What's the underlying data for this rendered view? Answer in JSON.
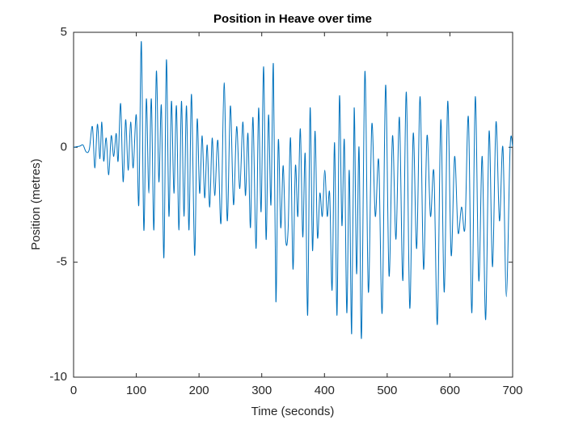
{
  "chart_data": {
    "type": "line",
    "title": "Position in Heave over time",
    "x_label": "Time (seconds)",
    "y_label": "Position (metres)",
    "xlim": [
      0,
      700
    ],
    "ylim": [
      -10,
      5
    ],
    "xticks": [
      0,
      100,
      200,
      300,
      400,
      500,
      600,
      700
    ],
    "yticks": [
      -10,
      -5,
      0,
      5
    ],
    "grid": false,
    "series": [
      {
        "name": "Position",
        "color": "#0072BD",
        "x": [
          0,
          10,
          15,
          20,
          25,
          30,
          34,
          38,
          42,
          45,
          48,
          52,
          56,
          60,
          64,
          68,
          71,
          75,
          79,
          83,
          87,
          91,
          95,
          100,
          104,
          108,
          112,
          116,
          120,
          124,
          128,
          132,
          136,
          140,
          144,
          148,
          152,
          156,
          160,
          164,
          168,
          172,
          176,
          180,
          184,
          188,
          193,
          197,
          201,
          205,
          209,
          213,
          217,
          221,
          225,
          230,
          235,
          240,
          245,
          250,
          255,
          260,
          265,
          270,
          274,
          278,
          282,
          286,
          291,
          295,
          299,
          303,
          306.9,
          310.8,
          314.7,
          318.6,
          322.5,
          326.4,
          330.3,
          334.2,
          338.1,
          342,
          345.9,
          349.8,
          353.7,
          357.6,
          361.5,
          365.4,
          369.3,
          373.2,
          377.1,
          381,
          384.9,
          388.8,
          392.7,
          396.6,
          400.5,
          404.4,
          408.3,
          412.2,
          416.1,
          420,
          423.9,
          427.8,
          431.7,
          435.6,
          439.5,
          443.4,
          447.3,
          451.2,
          455.1,
          459,
          464.5,
          470,
          475.5,
          481,
          486.5,
          492,
          497.5,
          503,
          508.5,
          514,
          519.5,
          525,
          530.5,
          536,
          541.5,
          547,
          552.5,
          558,
          563.5,
          569,
          574.5,
          580,
          585.5,
          591,
          596.5,
          602,
          607.5,
          613,
          618.5,
          624,
          629.5,
          635,
          640.5,
          646,
          651.5,
          657,
          662.5,
          668,
          673.5,
          679,
          684.5,
          690,
          696,
          700
        ],
        "values": [
          0,
          0.05,
          0.1,
          -0.2,
          -0.1,
          0.9,
          -0.9,
          1.0,
          -0.5,
          1.1,
          -0.6,
          0.4,
          -1.2,
          0.5,
          -0.4,
          0.6,
          -0.6,
          1.9,
          -1.5,
          1.2,
          -1.0,
          1.1,
          -0.9,
          1.4,
          -2.5,
          4.6,
          -3.6,
          2.1,
          -2.0,
          2.1,
          -3.6,
          3.3,
          -1.5,
          1.8,
          -4.8,
          3.8,
          -3.0,
          2.0,
          -2.0,
          1.8,
          -3.6,
          2.0,
          -3.0,
          1.8,
          -3.6,
          2.3,
          -4.7,
          1.2,
          -2.0,
          0.5,
          -2.2,
          0.1,
          -2.6,
          0.4,
          -2.1,
          0.3,
          -3.3,
          2.8,
          -3.2,
          1.8,
          -2.5,
          0.9,
          -1.8,
          1.1,
          -2.1,
          0.6,
          -3.5,
          1.3,
          -4.4,
          1.7,
          -2.8,
          3.5,
          -4.0,
          1.4,
          -2.5,
          3.6,
          -6.7,
          0.3,
          -3.5,
          -0.8,
          -4.0,
          -3.6,
          0.4,
          -5.3,
          -0.8,
          -3.0,
          0.8,
          -3.9,
          -0.3,
          -7.3,
          1.7,
          -4.5,
          0.7,
          -3.9,
          -2.0,
          -3.0,
          -1.0,
          -3.0,
          -2.0,
          -6.2,
          0.2,
          -7.3,
          2.2,
          -3.4,
          0.3,
          -7.2,
          -1.0,
          -8.1,
          1.7,
          -5.5,
          0.0,
          -8.3,
          3.3,
          -6.3,
          1.0,
          -3.0,
          -0.6,
          -7.2,
          2.7,
          -5.6,
          0.5,
          -4.0,
          1.3,
          -5.8,
          2.4,
          -7.0,
          0.6,
          -4.4,
          2.2,
          -5.3,
          0.5,
          -3.0,
          -1.1,
          -7.7,
          1.2,
          -6.3,
          2.0,
          -4.7,
          -0.4,
          -3.7,
          -2.6,
          -3.5,
          1.3,
          -7.2,
          2.2,
          -5.8,
          -0.4,
          -7.5,
          0.7,
          -5.2,
          1.1,
          -3.2,
          0.0,
          -6.5,
          0.0,
          0.05
        ]
      }
    ]
  }
}
